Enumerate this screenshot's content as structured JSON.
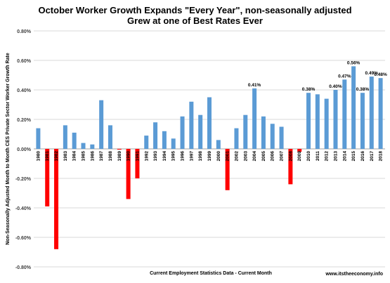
{
  "chart_data": {
    "type": "bar",
    "title": "October  Worker Growth Expands \"Every Year\", non-seasonally adjusted",
    "subtitle": "Grew at one of Best Rates Ever",
    "xlabel": "Current Employment Statistics Data - Current Month",
    "ylabel": "Non-Seasonally Adjusted Month to Month CES Private Sector Worker Growth Rate",
    "source": "www.itstheeconomy.info",
    "ylim": [
      -0.8,
      0.8
    ],
    "yticks": [
      "0.80%",
      "0.60%",
      "0.40%",
      "0.20%",
      "0.00%",
      "-0.20%",
      "-0.40%",
      "-0.60%",
      "-0.80%"
    ],
    "grid": true,
    "legend": "none",
    "colors": {
      "positive": "#5b9bd5",
      "negative": "#ff0000",
      "grid": "#d9d9d9"
    },
    "categories": [
      "1980",
      "1981",
      "1982",
      "1983",
      "1984",
      "1985",
      "1986",
      "1987",
      "1988",
      "1989",
      "1990",
      "1991",
      "1992",
      "1993",
      "1994",
      "1995",
      "1996",
      "1997",
      "1998",
      "1999",
      "2000",
      "2001",
      "2002",
      "2003",
      "2004",
      "2005",
      "2006",
      "2007",
      "2008",
      "2009",
      "2010",
      "2011",
      "2012",
      "2013",
      "2014",
      "2015",
      "2016",
      "2017",
      "2018"
    ],
    "values": [
      0.14,
      -0.39,
      -0.68,
      0.16,
      0.11,
      0.04,
      0.03,
      0.33,
      0.16,
      -0.005,
      -0.34,
      -0.2,
      0.09,
      0.18,
      0.12,
      0.07,
      0.22,
      0.32,
      0.23,
      0.35,
      0.06,
      -0.28,
      0.14,
      0.23,
      0.41,
      0.22,
      0.17,
      0.15,
      -0.24,
      -0.02,
      0.38,
      0.37,
      0.34,
      0.4,
      0.47,
      0.56,
      0.38,
      0.49,
      0.48
    ],
    "data_labels": [
      {
        "category": "2004",
        "text": "0.41%"
      },
      {
        "category": "2010",
        "text": "0.38%"
      },
      {
        "category": "2013",
        "text": "0.40%"
      },
      {
        "category": "2014",
        "text": "0.47%"
      },
      {
        "category": "2015",
        "text": "0.56%"
      },
      {
        "category": "2016",
        "text": "0.38%"
      },
      {
        "category": "2017",
        "text": "0.49%"
      },
      {
        "category": "2018",
        "text": "0.48%"
      }
    ]
  }
}
